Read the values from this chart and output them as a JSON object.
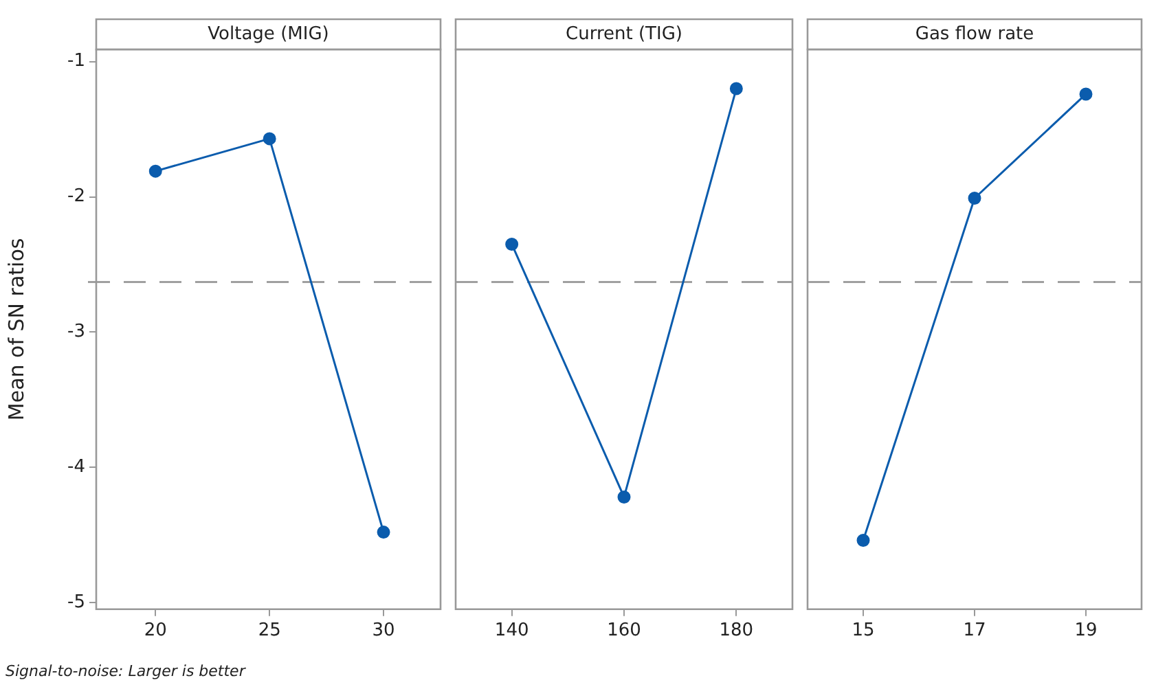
{
  "chart_data": [
    {
      "type": "line",
      "title": "Voltage (MIG)",
      "ylabel": "Mean of SN ratios",
      "x": [
        20,
        25,
        30
      ],
      "series": [
        {
          "color": "#0b5cad",
          "values": [
            -1.81,
            -1.57,
            -4.48
          ]
        }
      ],
      "xlim": [
        17.4,
        32.5
      ],
      "xticks": [
        20,
        25,
        30
      ],
      "ylim": [
        -5.05,
        -0.91
      ],
      "yticks": [
        -5,
        -4,
        -3,
        -2,
        -1
      ],
      "ref_lines": [
        {
          "axis": "y",
          "value": -2.63,
          "color": "#a0a0a0",
          "line_style": "dashed"
        }
      ],
      "marker": "circle",
      "line_style": "solid",
      "annotations": [
        "Signal-to-noise: Larger is better"
      ]
    },
    {
      "type": "line",
      "title": "Current (TIG)",
      "x": [
        140,
        160,
        180
      ],
      "series": [
        {
          "color": "#0b5cad",
          "values": [
            -2.35,
            -4.22,
            -1.2
          ]
        }
      ],
      "xlim": [
        130,
        190
      ],
      "xticks": [
        140,
        160,
        180
      ],
      "ylim": [
        -5.05,
        -0.91
      ],
      "tick_labels": "x",
      "ref_lines": [
        {
          "axis": "y",
          "value": -2.63,
          "color": "#a0a0a0",
          "line_style": "dashed"
        }
      ],
      "marker": "circle",
      "line_style": "solid"
    },
    {
      "type": "line",
      "title": "Gas flow rate",
      "x": [
        15,
        17,
        19
      ],
      "series": [
        {
          "color": "#0b5cad",
          "values": [
            -4.54,
            -2.01,
            -1.24
          ]
        }
      ],
      "xlim": [
        14,
        20
      ],
      "xticks": [
        15,
        17,
        19
      ],
      "ylim": [
        -5.05,
        -0.91
      ],
      "tick_labels": "x",
      "ref_lines": [
        {
          "axis": "y",
          "value": -2.63,
          "color": "#a0a0a0",
          "line_style": "dashed"
        }
      ],
      "marker": "circle",
      "line_style": "solid"
    }
  ]
}
